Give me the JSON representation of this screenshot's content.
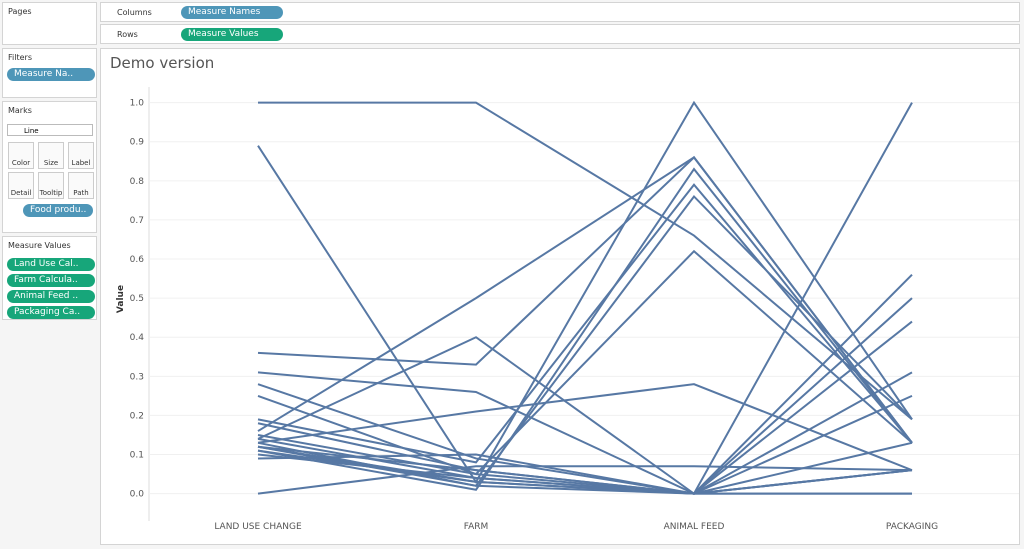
{
  "ui": {
    "pages_title": "Pages",
    "filters_title": "Filters",
    "filter_pill": "Measure Na..",
    "marks_title": "Marks",
    "mark_type": "Line",
    "mark_buttons": [
      "Color",
      "Size",
      "Label",
      "Detail",
      "Tooltip",
      "Path"
    ],
    "detail_pill": "Food produ..",
    "measure_values_title": "Measure Values",
    "measure_pills": [
      "Land Use Cal..",
      "Farm Calcula..",
      "Animal Feed ..",
      "Packaging Ca.."
    ],
    "columns_label": "Columns",
    "columns_pill": "Measure Names",
    "rows_label": "Rows",
    "rows_pill": "Measure Values"
  },
  "chart_data": {
    "type": "line",
    "title": "Demo version",
    "y_label": "Value",
    "categories": [
      "LAND USE CHANGE",
      "FARM",
      "ANIMAL FEED",
      "PACKAGING"
    ],
    "color": "#5778a4",
    "grid": true,
    "ylim": [
      -0.07,
      1.04
    ],
    "yticks": [
      {
        "value": 0,
        "label": "0.0"
      },
      0.1,
      0.2,
      0.3,
      0.4,
      0.5,
      0.6,
      0.7,
      0.8,
      0.9,
      {
        "value": 1,
        "label": "1.0"
      }
    ],
    "series": [
      {
        "values": [
          1.0,
          1.0,
          0.66,
          0.19
        ]
      },
      {
        "values": [
          0.89,
          0.03,
          1.0,
          0.19
        ]
      },
      {
        "values": [
          0.36,
          0.33,
          0.86,
          0.13
        ]
      },
      {
        "values": [
          0.31,
          0.26,
          0,
          0.06
        ]
      },
      {
        "values": [
          0.28,
          0.09,
          0,
          0.56
        ]
      },
      {
        "values": [
          0.25,
          0.05,
          0.62,
          0.13
        ]
      },
      {
        "values": [
          0.16,
          0.5,
          0.86,
          0.13
        ]
      },
      {
        "values": [
          0.14,
          0.4,
          0,
          0.06
        ]
      },
      {
        "values": [
          0.13,
          0.21,
          0.28,
          0.06
        ]
      },
      {
        "values": [
          0.19,
          0.08,
          0.79,
          0.13
        ]
      },
      {
        "values": [
          0.12,
          0.02,
          0.76,
          0.19
        ]
      },
      {
        "values": [
          0.11,
          0.01,
          0.83,
          0.13
        ]
      },
      {
        "values": [
          0,
          0.07,
          0.07,
          0.06
        ]
      },
      {
        "values": [
          0.09,
          0.1,
          0,
          0
        ]
      },
      {
        "values": [
          0.12,
          0.03,
          0,
          0.5
        ]
      },
      {
        "values": [
          0.14,
          0.04,
          0,
          0.44
        ]
      },
      {
        "values": [
          0.15,
          0.05,
          0,
          0.31
        ]
      },
      {
        "values": [
          0.13,
          0.02,
          0,
          1.0
        ]
      },
      {
        "values": [
          0.11,
          0.03,
          0,
          0.25
        ]
      },
      {
        "values": [
          0.12,
          0.06,
          0,
          0.06
        ]
      },
      {
        "values": [
          0.1,
          0.04,
          0,
          0
        ]
      },
      {
        "values": [
          0.18,
          0.06,
          0,
          0.13
        ]
      }
    ]
  }
}
